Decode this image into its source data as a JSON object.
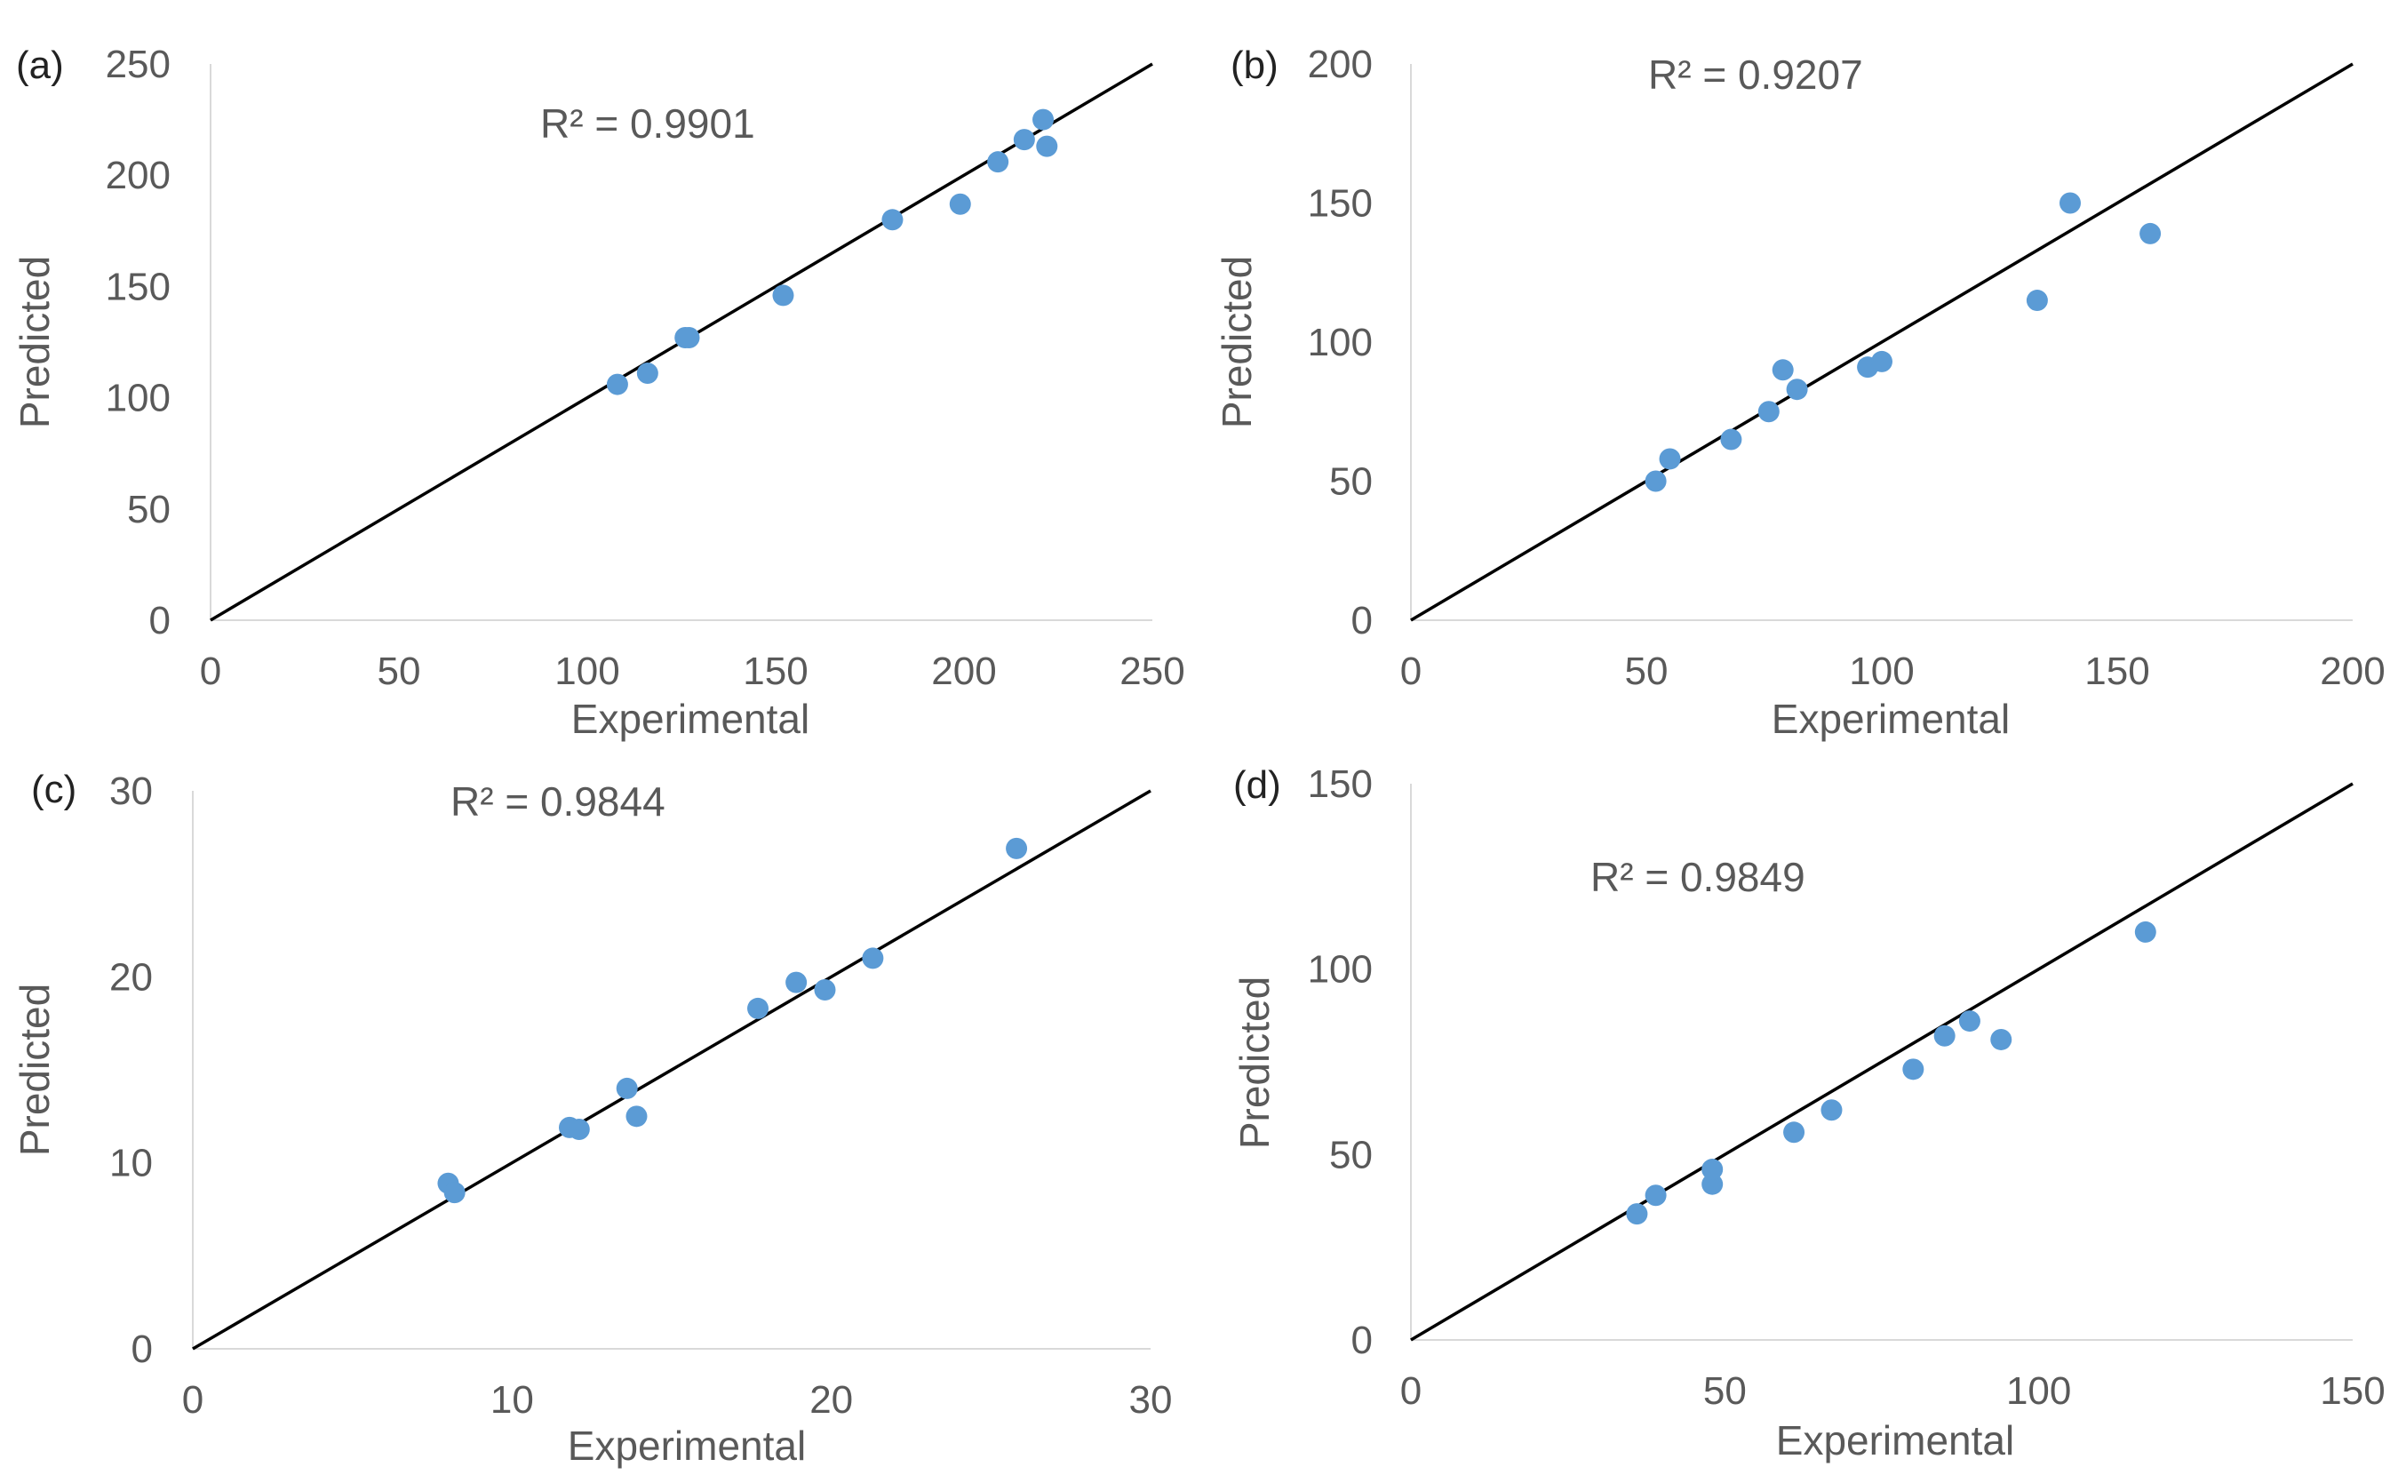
{
  "chart_data": [
    {
      "type": "scatter",
      "panel": "(a)",
      "xlabel": "Experimental",
      "ylabel": "Predicted",
      "xlim": [
        0,
        250
      ],
      "ylim": [
        0,
        250
      ],
      "xticks": [
        "0",
        "50",
        "100",
        "150",
        "200",
        "250"
      ],
      "yticks": [
        "0",
        "50",
        "100",
        "150",
        "200",
        "250"
      ],
      "annotation": "R² = 0.9901",
      "fit_line": [
        [
          0,
          0
        ],
        [
          250,
          250
        ]
      ],
      "points": [
        [
          108,
          106
        ],
        [
          116,
          111
        ],
        [
          126,
          127
        ],
        [
          127,
          127
        ],
        [
          152,
          146
        ],
        [
          181,
          180
        ],
        [
          199,
          187
        ],
        [
          209,
          206
        ],
        [
          216,
          216
        ],
        [
          221,
          225
        ],
        [
          222,
          213
        ]
      ]
    },
    {
      "type": "scatter",
      "panel": "(b)",
      "xlabel": "Experimental",
      "ylabel": "Predicted",
      "xlim": [
        0,
        200
      ],
      "ylim": [
        0,
        200
      ],
      "xticks": [
        "0",
        "50",
        "100",
        "150",
        "200"
      ],
      "yticks": [
        "0",
        "50",
        "100",
        "150",
        "200"
      ],
      "annotation": "R² = 0.9207",
      "fit_line": [
        [
          0,
          0
        ],
        [
          200,
          200
        ]
      ],
      "points": [
        [
          52,
          50
        ],
        [
          55,
          58
        ],
        [
          68,
          65
        ],
        [
          76,
          75
        ],
        [
          79,
          90
        ],
        [
          82,
          83
        ],
        [
          97,
          91
        ],
        [
          100,
          93
        ],
        [
          133,
          115
        ],
        [
          140,
          150
        ],
        [
          157,
          139
        ]
      ]
    },
    {
      "type": "scatter",
      "panel": "(c)",
      "xlabel": "Experimental",
      "ylabel": "Predicted",
      "xlim": [
        0,
        30
      ],
      "ylim": [
        0,
        30
      ],
      "xticks": [
        "0",
        "10",
        "20",
        "30"
      ],
      "yticks": [
        "0",
        "10",
        "20",
        "30"
      ],
      "annotation": "R² = 0.9844",
      "fit_line": [
        [
          0,
          0
        ],
        [
          30,
          30
        ]
      ],
      "points": [
        [
          8.0,
          8.9
        ],
        [
          8.2,
          8.4
        ],
        [
          11.8,
          11.9
        ],
        [
          12.1,
          11.8
        ],
        [
          13.6,
          14.0
        ],
        [
          13.9,
          12.5
        ],
        [
          17.7,
          18.3
        ],
        [
          18.9,
          19.7
        ],
        [
          19.8,
          19.3
        ],
        [
          21.3,
          21.0
        ],
        [
          25.8,
          26.9
        ]
      ]
    },
    {
      "type": "scatter",
      "panel": "(d)",
      "xlabel": "Experimental",
      "ylabel": "Predicted",
      "xlim": [
        0,
        150
      ],
      "ylim": [
        0,
        150
      ],
      "xticks": [
        "0",
        "50",
        "100",
        "150"
      ],
      "yticks": [
        "0",
        "50",
        "100",
        "150"
      ],
      "annotation": "R² = 0.9849",
      "fit_line": [
        [
          0,
          0
        ],
        [
          150,
          150
        ]
      ],
      "points": [
        [
          36,
          34
        ],
        [
          39,
          39
        ],
        [
          48,
          42
        ],
        [
          48,
          46
        ],
        [
          61,
          56
        ],
        [
          67,
          62
        ],
        [
          80,
          73
        ],
        [
          85,
          82
        ],
        [
          89,
          86
        ],
        [
          94,
          81
        ],
        [
          117,
          110
        ]
      ]
    }
  ],
  "colors": {
    "point": "#5B9BD5",
    "fit_line": "#000000",
    "axis": "#D9D9D9",
    "text": "#595959"
  }
}
